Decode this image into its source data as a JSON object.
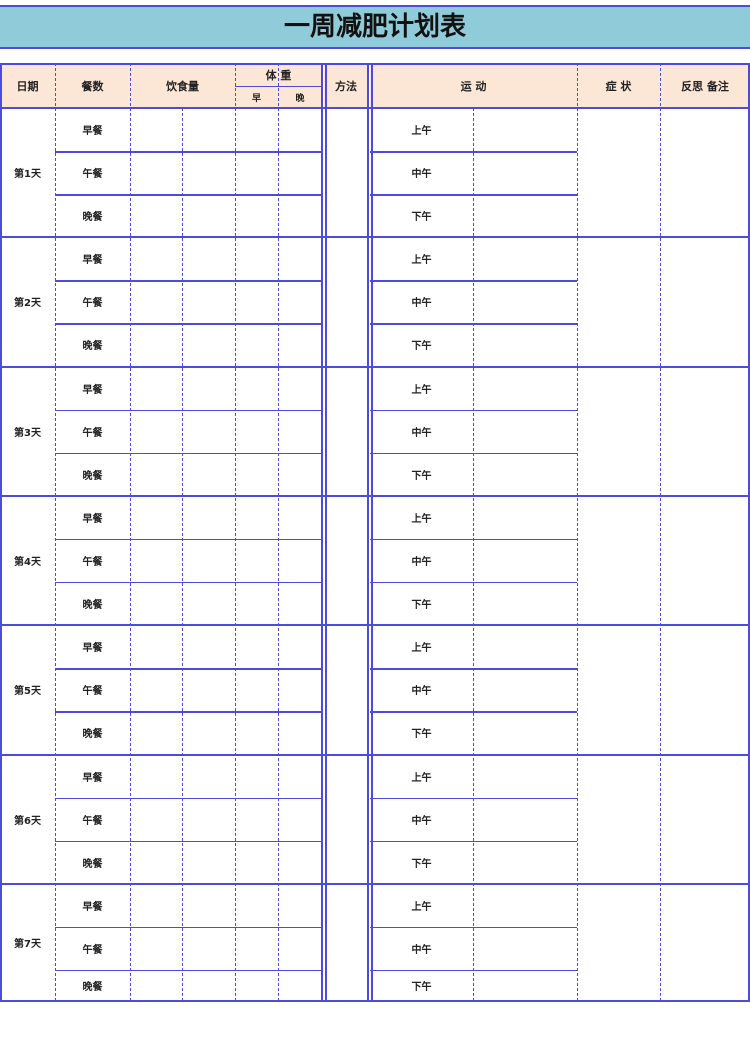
{
  "title": "一周减肥计划表",
  "headers": {
    "date": "日期",
    "meals": "餐数",
    "intake": "饮食量",
    "weight": "体 重",
    "weight_morning": "早",
    "weight_evening": "晚",
    "method": "方法",
    "exercise": "运 动",
    "symptoms": "症 状",
    "notes": "反思 备注"
  },
  "days": [
    "第1天",
    "第2天",
    "第3天",
    "第4天",
    "第5天",
    "第6天",
    "第7天"
  ],
  "meals": [
    "早餐",
    "午餐",
    "晚餐"
  ],
  "periods": [
    "上午",
    "中午",
    "下午"
  ],
  "colors": {
    "title_bg": "#8fcbd9",
    "header_bg": "#fce6d6",
    "border": "#4b4bdc"
  }
}
